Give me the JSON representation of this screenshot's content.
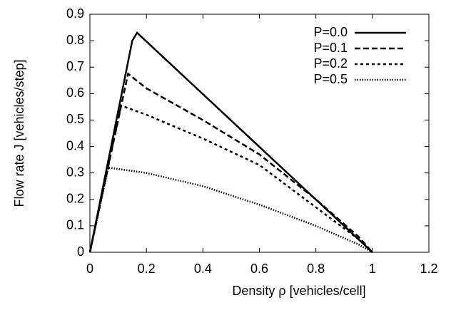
{
  "chart_data": {
    "type": "line",
    "xlabel": "Density ρ [vehicles/cell]",
    "ylabel": "Flow rate J [vehicles/step]",
    "xlim": [
      0,
      1.2
    ],
    "xticks": [
      0,
      0.2,
      0.4,
      0.6,
      0.8,
      1,
      1.2
    ],
    "ylim": [
      0,
      0.9
    ],
    "yticks": [
      0,
      0.1,
      0.2,
      0.3,
      0.4,
      0.5,
      0.6,
      0.7,
      0.8,
      0.9
    ],
    "legend": "top-right",
    "series": [
      {
        "name": "P=0.0",
        "color": "#000000",
        "x": [
          0,
          0.15,
          0.167,
          1.0
        ],
        "values": [
          0,
          0.8,
          0.83,
          0
        ]
      },
      {
        "name": "P=0.1",
        "color": "#000000",
        "x": [
          0,
          0.135,
          0.2,
          0.4,
          0.6,
          0.8,
          0.95,
          1.0
        ],
        "values": [
          0,
          0.675,
          0.62,
          0.5,
          0.37,
          0.2,
          0.06,
          0
        ]
      },
      {
        "name": "P=0.2",
        "color": "#000000",
        "x": [
          0,
          0.11,
          0.2,
          0.4,
          0.6,
          0.8,
          0.95,
          1.0
        ],
        "values": [
          0,
          0.555,
          0.52,
          0.43,
          0.33,
          0.17,
          0.05,
          0
        ]
      },
      {
        "name": "P=0.5",
        "color": "#000000",
        "x": [
          0,
          0.065,
          0.2,
          0.4,
          0.6,
          0.8,
          0.95,
          1.0
        ],
        "values": [
          0,
          0.32,
          0.3,
          0.25,
          0.18,
          0.1,
          0.03,
          0
        ]
      }
    ]
  }
}
